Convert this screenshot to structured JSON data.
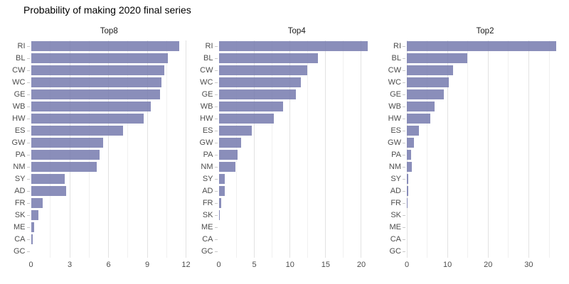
{
  "title": "Probability of making 2020 final series",
  "colors": {
    "bar_fill": "#757aae",
    "bar_alpha": 0.85,
    "grid_major": "#e2e2e2",
    "grid_minor": "#f0f0f0",
    "axis_text": "#4d4d4d",
    "tick_mark": "#c9c9c9",
    "strip_text": "#1a1a1a",
    "background": "#ffffff"
  },
  "chart_data": [
    {
      "type": "bar",
      "orientation": "horizontal",
      "title": "Top8",
      "categories": [
        "RI",
        "BL",
        "CW",
        "WC",
        "GE",
        "WB",
        "HW",
        "ES",
        "GW",
        "PA",
        "NM",
        "SY",
        "AD",
        "FR",
        "SK",
        "ME",
        "CA",
        "GC"
      ],
      "values": [
        11.5,
        10.6,
        10.3,
        10.1,
        10.0,
        9.3,
        8.7,
        7.1,
        5.6,
        5.3,
        5.1,
        2.6,
        2.75,
        0.9,
        0.6,
        0.25,
        0.15,
        0
      ],
      "xticks": [
        0,
        3,
        6,
        9,
        12
      ],
      "minor_xticks": [
        1.5,
        4.5,
        7.5,
        10.5
      ],
      "xlim": [
        0,
        12.08
      ],
      "grid": true,
      "legend": false
    },
    {
      "type": "bar",
      "orientation": "horizontal",
      "title": "Top4",
      "categories": [
        "RI",
        "BL",
        "CW",
        "WC",
        "GE",
        "WB",
        "HW",
        "ES",
        "GW",
        "PA",
        "NM",
        "SY",
        "AD",
        "FR",
        "SK",
        "ME",
        "CA",
        "GC"
      ],
      "values": [
        20.9,
        13.9,
        12.4,
        11.5,
        10.8,
        9.0,
        7.7,
        4.6,
        3.1,
        2.65,
        2.35,
        0.8,
        0.85,
        0.3,
        0.1,
        0,
        0,
        0
      ],
      "xticks": [
        0,
        5,
        10,
        15,
        20
      ],
      "minor_xticks": [
        2.5,
        7.5,
        12.5,
        17.5
      ],
      "xlim": [
        0,
        21.9
      ],
      "grid": true,
      "legend": false
    },
    {
      "type": "bar",
      "orientation": "horizontal",
      "title": "Top2",
      "categories": [
        "RI",
        "BL",
        "CW",
        "WC",
        "GE",
        "WB",
        "HW",
        "ES",
        "GW",
        "PA",
        "NM",
        "SY",
        "AD",
        "FR",
        "SK",
        "ME",
        "CA",
        "GC"
      ],
      "values": [
        36.7,
        14.8,
        11.3,
        10.4,
        9.1,
        6.8,
        5.8,
        2.9,
        1.7,
        1.1,
        1.2,
        0.3,
        0.35,
        0.1,
        0,
        0,
        0,
        0
      ],
      "xticks": [
        0,
        10,
        20,
        30
      ],
      "minor_xticks": [
        5,
        15,
        25,
        35
      ],
      "xlim": [
        0,
        38.5
      ],
      "grid": true,
      "legend": false
    }
  ]
}
